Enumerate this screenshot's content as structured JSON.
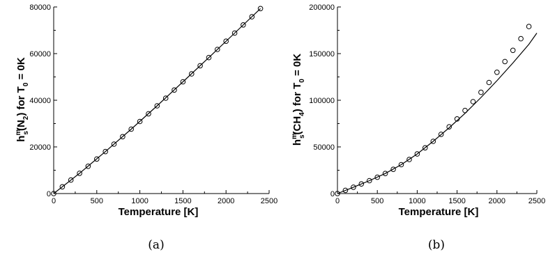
{
  "chart_data": [
    {
      "type": "line",
      "caption": "(a)",
      "xlabel": "Temperature [K]",
      "ylabel_parts": {
        "h": "h",
        "sup": "m",
        "sub": "s",
        "species": "N",
        "species_sub": "2",
        "mid": ") for T",
        "t_sub": "0",
        "end": " = 0K"
      },
      "xlim": [
        0,
        2500
      ],
      "ylim": [
        0,
        80000
      ],
      "xticks": [
        0,
        500,
        1000,
        1500,
        2000,
        2500
      ],
      "yticks": [
        0,
        20000,
        40000,
        60000,
        80000
      ],
      "grid": false,
      "series": [
        {
          "style": "solid-line",
          "x": [
            0,
            300,
            600,
            900,
            1200,
            1500,
            1800,
            2100,
            2400
          ],
          "y": [
            0,
            8700,
            18000,
            27600,
            37600,
            47900,
            58300,
            68800,
            79300
          ]
        },
        {
          "style": "open-circle-markers",
          "x": [
            0,
            100,
            200,
            300,
            400,
            500,
            600,
            700,
            800,
            900,
            1000,
            1100,
            1200,
            1300,
            1400,
            1500,
            1600,
            1700,
            1800,
            1900,
            2000,
            2100,
            2200,
            2300,
            2400
          ],
          "y": [
            0,
            2900,
            5800,
            8700,
            11700,
            14800,
            18000,
            21200,
            24400,
            27600,
            30900,
            34200,
            37600,
            40900,
            44400,
            47900,
            51300,
            54800,
            58300,
            61800,
            65300,
            68800,
            72300,
            75800,
            79300
          ]
        }
      ]
    },
    {
      "type": "line",
      "caption": "(b)",
      "xlabel": "Temperature [K]",
      "ylabel_parts": {
        "h": "h",
        "sup": "m",
        "sub": "s",
        "species": "CH",
        "species_sub": "4",
        "mid": ") for T",
        "t_sub": "0",
        "end": " = 0K"
      },
      "xlim": [
        0,
        2500
      ],
      "ylim": [
        0,
        200000
      ],
      "xticks": [
        0,
        500,
        1000,
        1500,
        2000,
        2500
      ],
      "yticks": [
        0,
        50000,
        100000,
        150000,
        200000
      ],
      "grid": false,
      "series": [
        {
          "style": "solid-line",
          "x": [
            0,
            200,
            400,
            600,
            800,
            1000,
            1200,
            1400,
            1600,
            1800,
            2000,
            2200,
            2400,
            2500
          ],
          "y": [
            0,
            6800,
            13800,
            21500,
            31000,
            42500,
            56000,
            70500,
            86000,
            103000,
            121000,
            140000,
            160000,
            172000
          ]
        },
        {
          "style": "open-circle-markers",
          "x": [
            0,
            100,
            200,
            300,
            400,
            500,
            600,
            700,
            800,
            900,
            1000,
            1100,
            1200,
            1300,
            1400,
            1500,
            1600,
            1700,
            1800,
            1900,
            2000,
            2100,
            2200,
            2300,
            2400
          ],
          "y": [
            0,
            3400,
            6800,
            10300,
            13800,
            17500,
            21500,
            26000,
            31000,
            36500,
            42500,
            49000,
            56000,
            63500,
            71500,
            80000,
            89000,
            98500,
            108500,
            119000,
            130000,
            141500,
            153500,
            166000,
            179000
          ]
        }
      ]
    }
  ]
}
